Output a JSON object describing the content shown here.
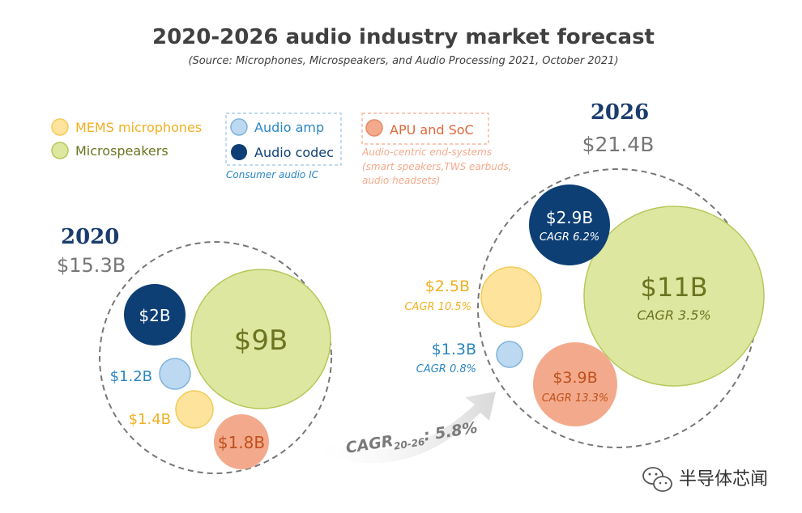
{
  "title": "2020-2026 audio industry market forecast",
  "subtitle": "(Source: Microphones, Microspeakers, and Audio Processing 2021, October 2021)",
  "legend": {
    "mems": "MEMS microphones",
    "speakers": "Microspeakers",
    "amp": "Audio amp",
    "codec": "Audio codec",
    "consumer_ic": "Consumer audio IC",
    "apu": "APU and SoC",
    "apu_note_1": "Audio-centric end-systems",
    "apu_note_2": "(smart speakers,TWS earbuds,",
    "apu_note_3": "audio headsets)"
  },
  "colors": {
    "mems": "#fde39b",
    "speakers": "#dde7a0",
    "amp": "#bcd9f1",
    "codec": "#0d3f75",
    "apu": "#f3aa8c",
    "year": "#1a3c6e",
    "total": "#777777",
    "gold": "#f0b020",
    "blue": "#2a86c4",
    "olive": "#6b7420",
    "orange": "#e0683a"
  },
  "chart_data": {
    "type": "bubble",
    "title": "2020-2026 audio industry market forecast",
    "unit": "USD",
    "overall_cagr": "CAGR20-26: 5.8%",
    "cagr_prefix": "CAGR",
    "cagr_sub": "20-26",
    "cagr_value": ": 5.8%",
    "years": [
      {
        "year": "2020",
        "total": "$15.3B",
        "segments": [
          {
            "category": "Microspeakers",
            "value": 9.0,
            "label": "$9B"
          },
          {
            "category": "Audio codec",
            "value": 2.0,
            "label": "$2B"
          },
          {
            "category": "Audio amp",
            "value": 1.2,
            "label": "$1.2B"
          },
          {
            "category": "MEMS microphones",
            "value": 1.4,
            "label": "$1.4B"
          },
          {
            "category": "APU and SoC",
            "value": 1.8,
            "label": "$1.8B"
          }
        ]
      },
      {
        "year": "2026",
        "total": "$21.4B",
        "segments": [
          {
            "category": "Microspeakers",
            "value": 11.0,
            "label": "$11B",
            "cagr": "CAGR 3.5%"
          },
          {
            "category": "Audio codec",
            "value": 2.9,
            "label": "$2.9B",
            "cagr": "CAGR 6.2%"
          },
          {
            "category": "MEMS microphones",
            "value": 2.5,
            "label": "$2.5B",
            "cagr": "CAGR 10.5%"
          },
          {
            "category": "Audio amp",
            "value": 1.3,
            "label": "$1.3B",
            "cagr": "CAGR 0.8%"
          },
          {
            "category": "APU and SoC",
            "value": 3.9,
            "label": "$3.9B",
            "cagr": "CAGR 13.3%"
          }
        ]
      }
    ]
  },
  "watermark": "半导体芯闻"
}
